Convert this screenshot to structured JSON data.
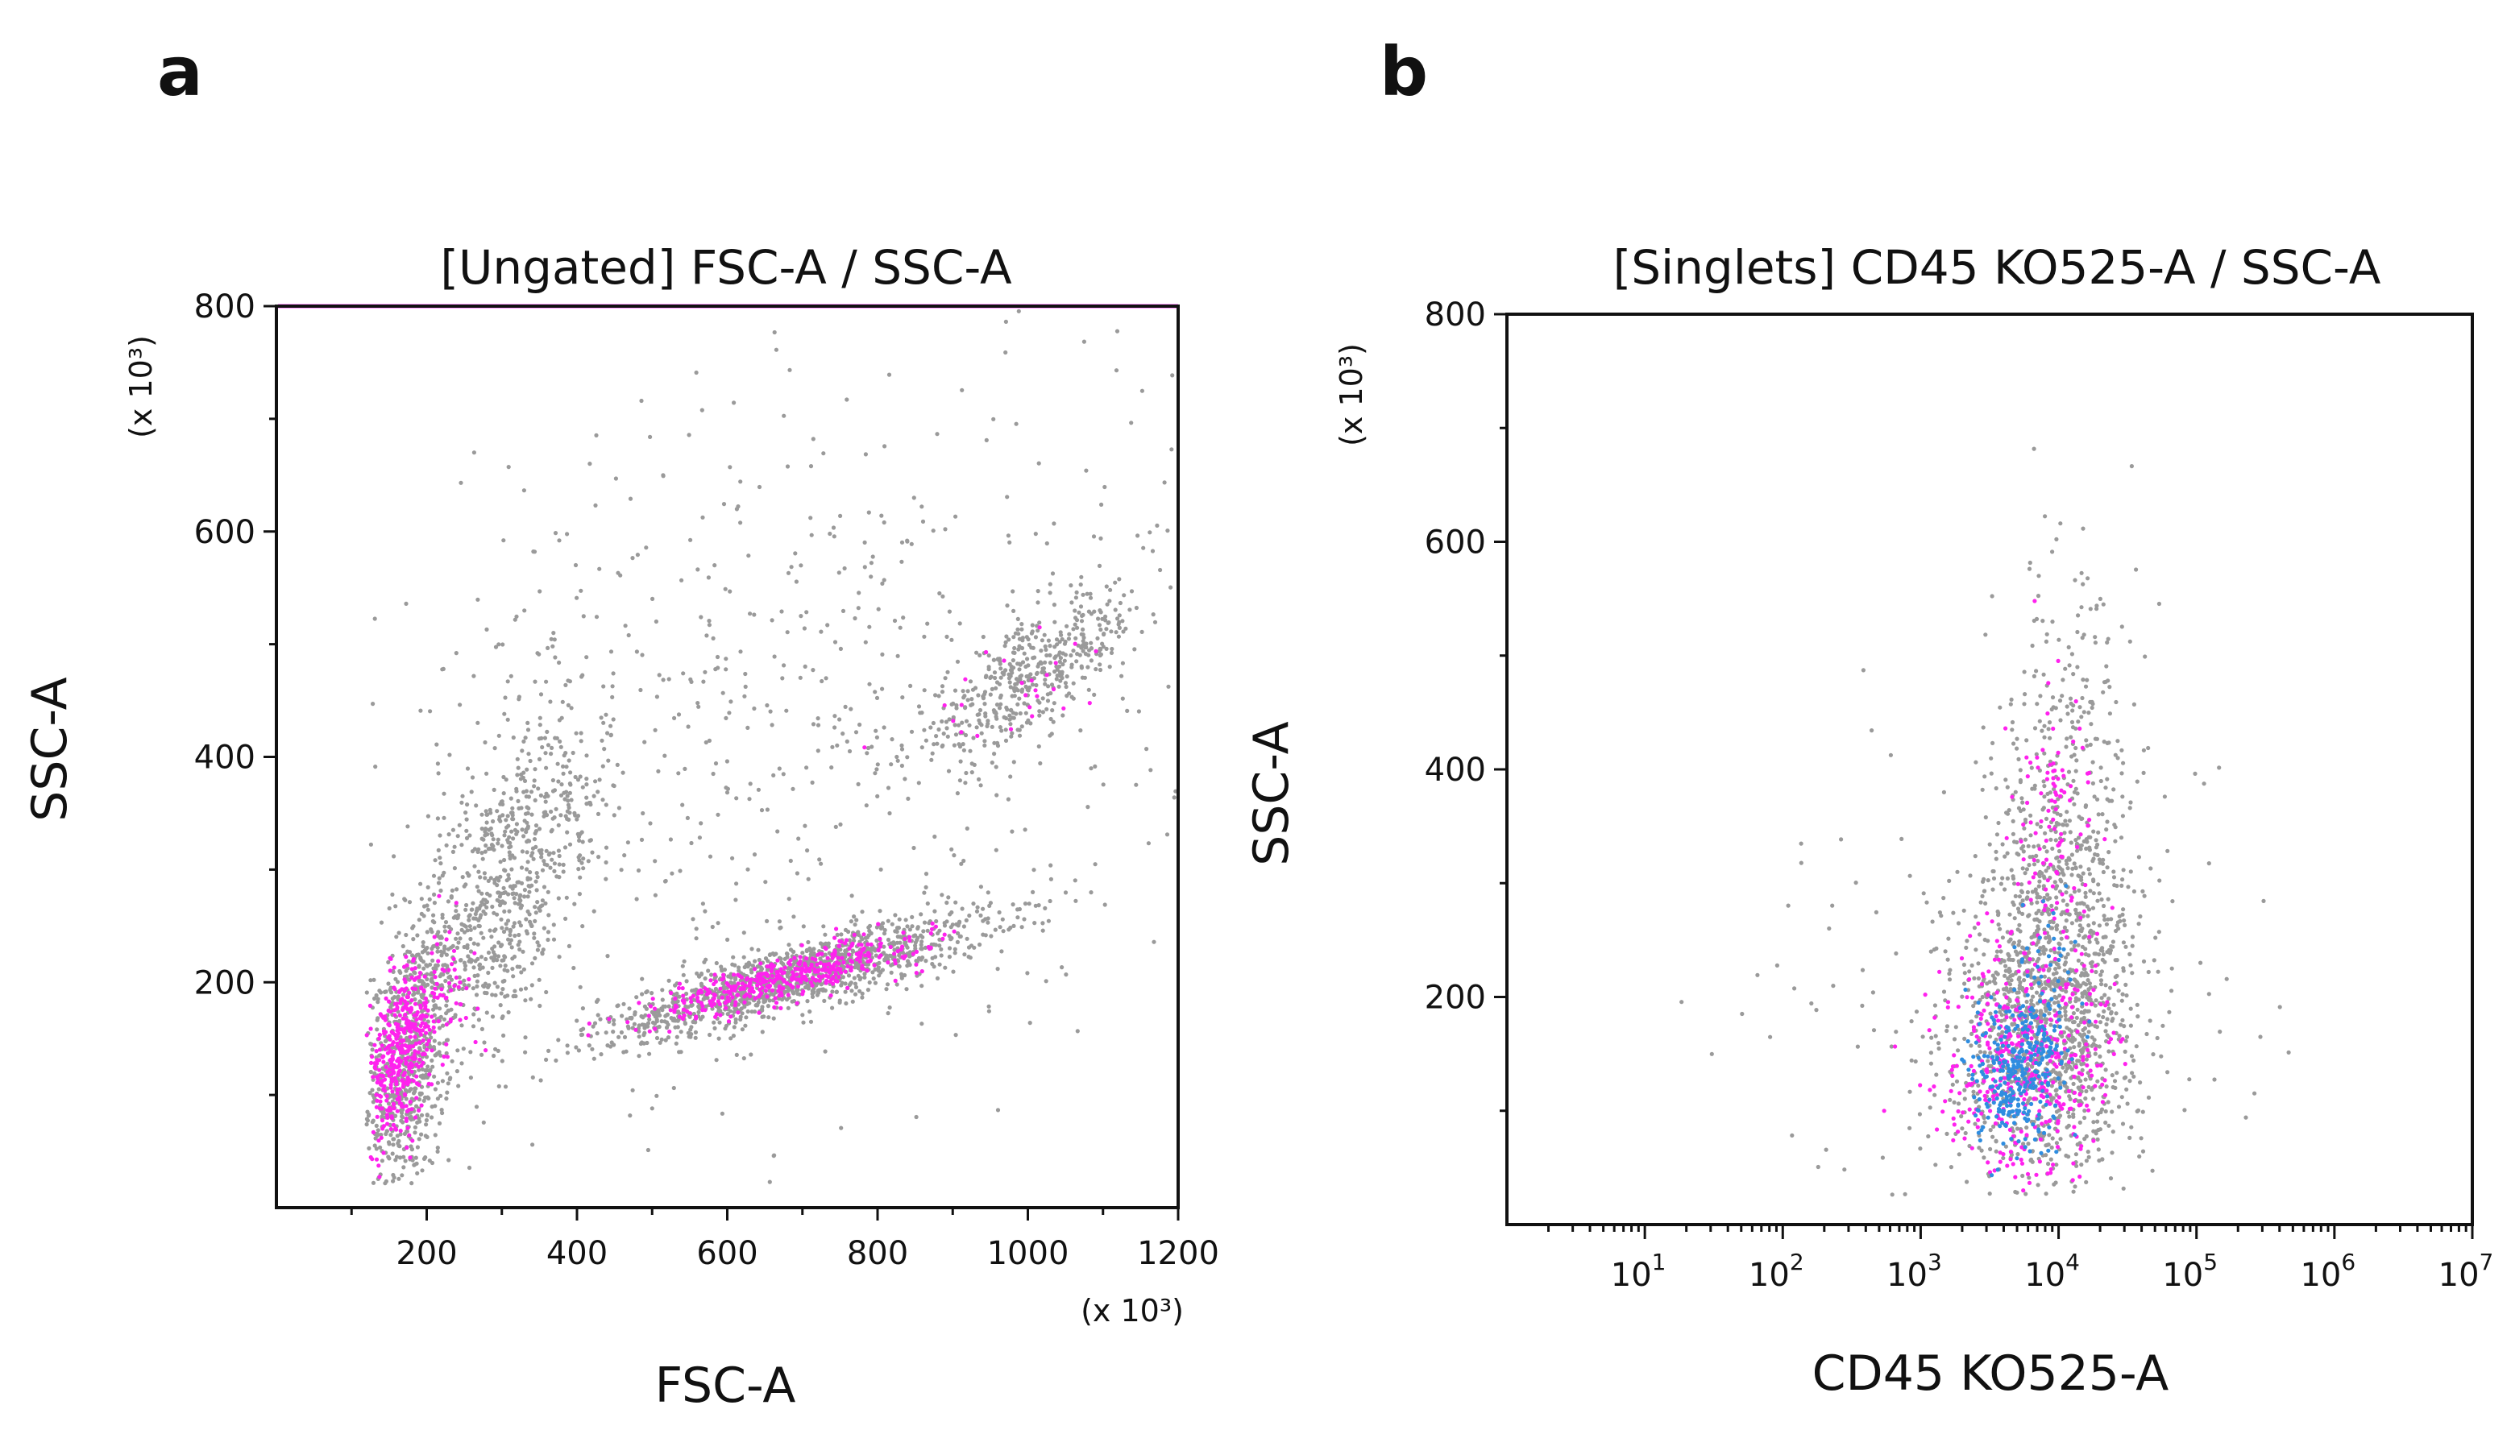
{
  "panels": [
    {
      "letter": "a"
    },
    {
      "letter": "b"
    }
  ],
  "colors": {
    "gray_events": "#9a9a9a",
    "magenta_events": "#ff22ee",
    "blue_events": "#2f8de0",
    "top_edge_line": "#ff33ff"
  },
  "chart_data": [
    {
      "type": "scatter",
      "title": "[Ungated] FSC-A / SSC-A",
      "xlabel": "FSC-A",
      "ylabel": "SSC-A",
      "x_multiplier": "(x 10³)",
      "y_multiplier": "(x 10³)",
      "xlim": [
        0,
        1200
      ],
      "ylim": [
        0,
        800
      ],
      "xticks": [
        "200",
        "400",
        "600",
        "800",
        "1000",
        "1200"
      ],
      "yticks": [
        "200",
        "400",
        "600",
        "800"
      ],
      "grid": false,
      "legend": "none",
      "series": [
        {
          "color": "gray",
          "populations": [
            {
              "cx": 175,
              "cy": 130,
              "sx": 30,
              "sy": 60,
              "rho": 0.3,
              "n": 700
            },
            {
              "cx": 280,
              "cy": 260,
              "sx": 55,
              "sy": 60,
              "rho": 0.4,
              "n": 500
            },
            {
              "cx": 360,
              "cy": 360,
              "sx": 45,
              "sy": 60,
              "rho": 0.2,
              "n": 220
            },
            {
              "cx": 690,
              "cy": 205,
              "sx": 130,
              "sy": 28,
              "rho": 0.85,
              "n": 1300
            },
            {
              "cx": 1000,
              "cy": 470,
              "sx": 80,
              "sy": 40,
              "rho": 0.8,
              "n": 480
            },
            {
              "cx": 650,
              "cy": 420,
              "sx": 300,
              "sy": 170,
              "rho": 0.3,
              "n": 650
            }
          ]
        },
        {
          "color": "magenta",
          "populations": [
            {
              "cx": 165,
              "cy": 135,
              "sx": 22,
              "sy": 38,
              "rho": 0.4,
              "n": 380
            },
            {
              "cx": 220,
              "cy": 190,
              "sx": 25,
              "sy": 30,
              "rho": 0.3,
              "n": 60
            },
            {
              "cx": 680,
              "cy": 205,
              "sx": 90,
              "sy": 18,
              "rho": 0.85,
              "n": 420
            },
            {
              "cx": 970,
              "cy": 455,
              "sx": 60,
              "sy": 25,
              "rho": 0.6,
              "n": 25
            }
          ]
        }
      ]
    },
    {
      "type": "scatter",
      "title": "[Singlets] CD45 KO525-A / SSC-A",
      "xlabel": "CD45 KO525-A",
      "ylabel": "SSC-A",
      "y_multiplier": "(x 10³)",
      "x_scale": "log",
      "xlim": [
        1,
        10000000
      ],
      "ylim": [
        0,
        800
      ],
      "xticks": [
        "10",
        "10",
        "10",
        "10",
        "10",
        "10",
        "10"
      ],
      "xtick_exponents": [
        "1",
        "2",
        "3",
        "4",
        "5",
        "6",
        "7"
      ],
      "yticks": [
        "200",
        "400",
        "600",
        "800"
      ],
      "grid": false,
      "legend": "none",
      "series": [
        {
          "color": "gray",
          "populations": [
            {
              "cx": 3.9,
              "cy": 170,
              "sx": 0.35,
              "sy": 70,
              "rho": 0.05,
              "n": 1100
            },
            {
              "cx": 4.0,
              "cy": 330,
              "sx": 0.25,
              "sy": 120,
              "rho": 0.1,
              "n": 600
            },
            {
              "cx": 3.8,
              "cy": 220,
              "sx": 1.0,
              "sy": 130,
              "rho": 0.0,
              "n": 170
            }
          ]
        },
        {
          "color": "magenta",
          "populations": [
            {
              "cx": 3.75,
              "cy": 140,
              "sx": 0.3,
              "sy": 50,
              "rho": 0.0,
              "n": 420
            },
            {
              "cx": 3.95,
              "cy": 320,
              "sx": 0.15,
              "sy": 70,
              "rho": 0.0,
              "n": 120
            }
          ]
        },
        {
          "color": "blue",
          "populations": [
            {
              "cx": 3.7,
              "cy": 135,
              "sx": 0.17,
              "sy": 32,
              "rho": 0.1,
              "n": 300
            },
            {
              "cx": 3.9,
              "cy": 205,
              "sx": 0.12,
              "sy": 40,
              "rho": 0.0,
              "n": 60
            }
          ]
        }
      ]
    }
  ]
}
